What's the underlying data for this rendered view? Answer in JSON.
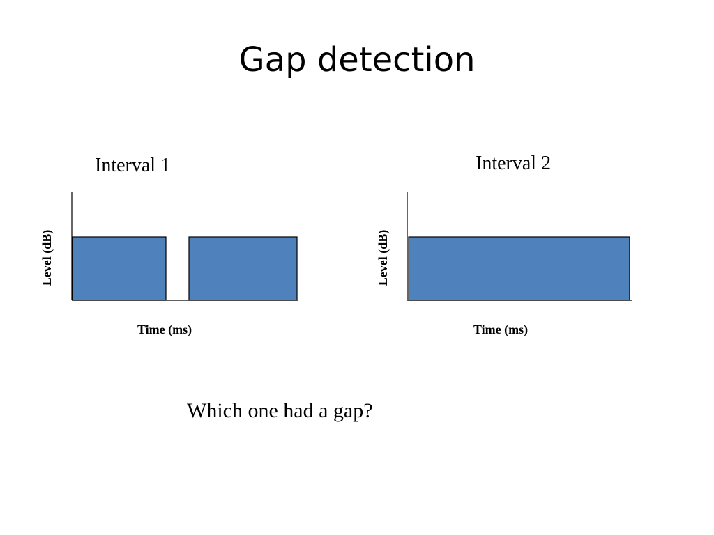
{
  "slide": {
    "title": "Gap detection",
    "question": "Which one had a gap?"
  },
  "intervals": [
    {
      "label": "Interval 1",
      "xlabel": "Time (ms)",
      "ylabel": "Level (dB)",
      "has_gap": true
    },
    {
      "label": "Interval 2",
      "xlabel": "Time (ms)",
      "ylabel": "Level (dB)",
      "has_gap": false
    }
  ],
  "colors": {
    "signal_fill": "#4f81bd",
    "signal_stroke": "#000000",
    "axis": "#000000"
  }
}
